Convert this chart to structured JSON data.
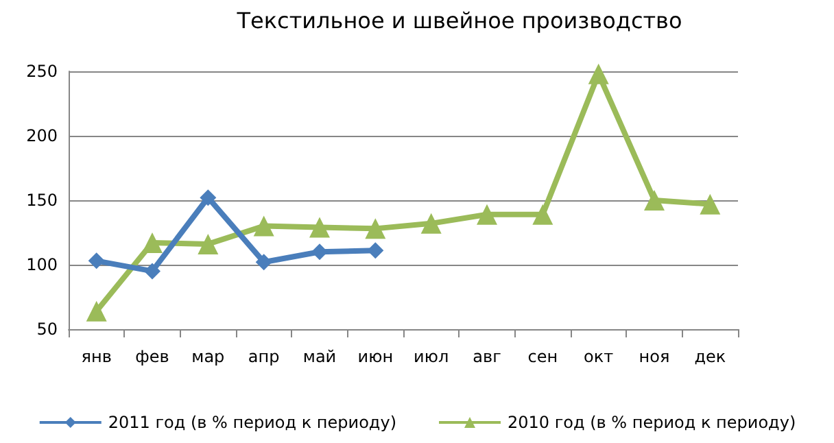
{
  "chart_data": {
    "type": "line",
    "title": "Текстильное и швейное производство",
    "categories": [
      "янв",
      "фев",
      "мар",
      "апр",
      "май",
      "июн",
      "июл",
      "авг",
      "сен",
      "окт",
      "ноя",
      "дек"
    ],
    "series": [
      {
        "name": "2011 год (в % период к периоду)",
        "color": "#4a7ebb",
        "marker": "diamond",
        "values": [
          103,
          95,
          152,
          102,
          110,
          111,
          null,
          null,
          null,
          null,
          null,
          null
        ]
      },
      {
        "name": "2010 год (в % период к периоду)",
        "color": "#9bbb59",
        "marker": "triangle",
        "values": [
          64,
          117,
          116,
          130,
          129,
          128,
          132,
          139,
          139,
          248,
          150,
          147
        ]
      }
    ],
    "ylim": [
      50,
      250
    ],
    "yticks": [
      50,
      100,
      150,
      200,
      250
    ],
    "grid": "y",
    "legend": "bottom"
  }
}
